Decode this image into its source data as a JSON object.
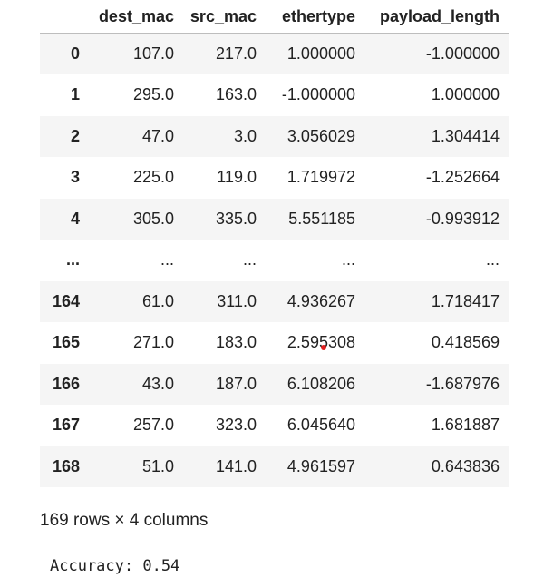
{
  "table": {
    "index_header": "",
    "columns": [
      "dest_mac",
      "src_mac",
      "ethertype",
      "payload_length"
    ],
    "rows": [
      {
        "index": "0",
        "cells": [
          "107.0",
          "217.0",
          "1.000000",
          "-1.000000"
        ]
      },
      {
        "index": "1",
        "cells": [
          "295.0",
          "163.0",
          "-1.000000",
          "1.000000"
        ]
      },
      {
        "index": "2",
        "cells": [
          "47.0",
          "3.0",
          "3.056029",
          "1.304414"
        ]
      },
      {
        "index": "3",
        "cells": [
          "225.0",
          "119.0",
          "1.719972",
          "-1.252664"
        ]
      },
      {
        "index": "4",
        "cells": [
          "305.0",
          "335.0",
          "5.551185",
          "-0.993912"
        ]
      },
      {
        "index": "...",
        "cells": [
          "...",
          "...",
          "...",
          "..."
        ]
      },
      {
        "index": "164",
        "cells": [
          "61.0",
          "311.0",
          "4.936267",
          "1.718417"
        ]
      },
      {
        "index": "165",
        "cells": [
          "271.0",
          "183.0",
          "2.595308",
          "0.418569"
        ]
      },
      {
        "index": "166",
        "cells": [
          "43.0",
          "187.0",
          "6.108206",
          "-1.687976"
        ]
      },
      {
        "index": "167",
        "cells": [
          "257.0",
          "323.0",
          "6.045640",
          "1.681887"
        ]
      },
      {
        "index": "168",
        "cells": [
          "51.0",
          "141.0",
          "4.961597",
          "0.643836"
        ]
      }
    ]
  },
  "shape_text": "169 rows × 4 columns",
  "output_text": "Accuracy: 0.54",
  "colors": {
    "stripe": "#f5f5f5",
    "header_rule": "#bdbdbd",
    "text": "#222222",
    "cursor_dot": "#e02020"
  }
}
